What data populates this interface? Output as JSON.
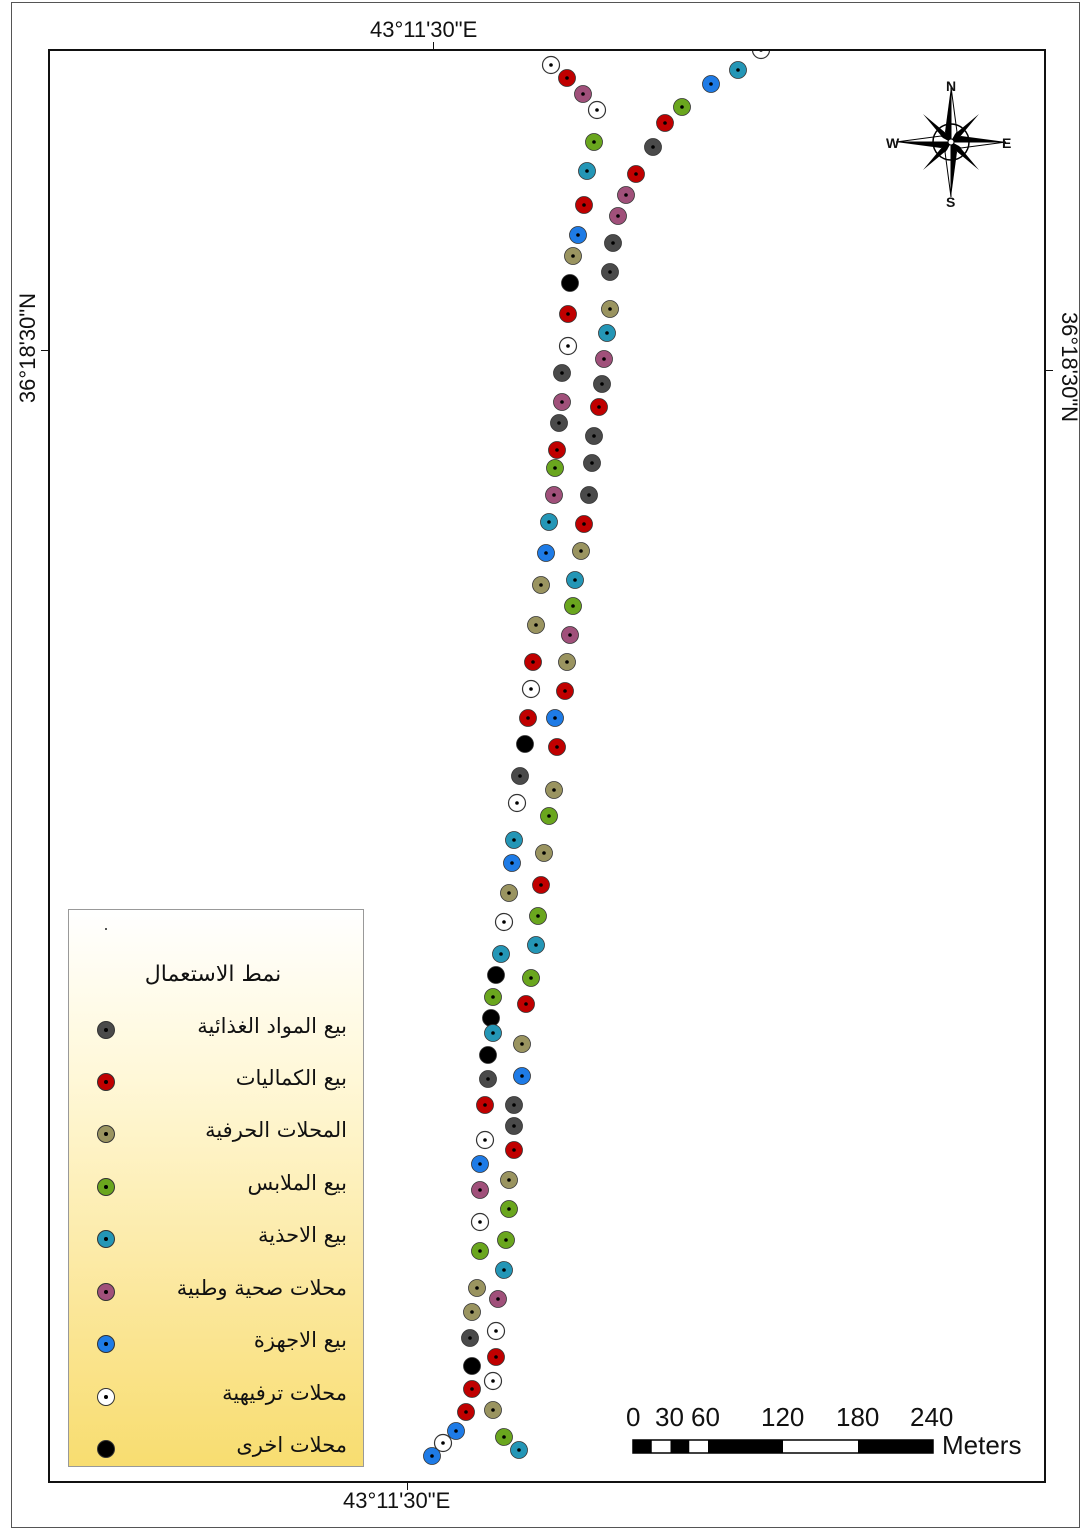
{
  "coordinates": {
    "top": "43°11'30\"E",
    "bottom": "43°11'30\"E",
    "left": "36°18'30\"N",
    "right": "36°18'30\"N"
  },
  "compass": {
    "n": "N",
    "s": "S",
    "e": "E",
    "w": "W"
  },
  "legend": {
    "title": "نمط الاستعمال",
    "items": [
      {
        "label": "بيع المواد الغذائية",
        "color": "#4a4a4a"
      },
      {
        "label": "بيع الكماليات",
        "color": "#c00000"
      },
      {
        "label": "المحلات الحرفية",
        "color": "#9a9460"
      },
      {
        "label": "بيع الملابس",
        "color": "#6aa61e"
      },
      {
        "label": "بيع الاحذية",
        "color": "#2496b6"
      },
      {
        "label": "محلات صحية وطبية",
        "color": "#a0507a"
      },
      {
        "label": "بيع الاجهزة",
        "color": "#1e7be6"
      },
      {
        "label": "محلات ترفيهية",
        "color": "#ffffff"
      },
      {
        "label": "محلات اخرى",
        "color": "#000000"
      }
    ]
  },
  "scale_bar": {
    "labels": [
      "0",
      "30",
      "60",
      "120",
      "180",
      "240"
    ],
    "unit": "Meters"
  }
}
